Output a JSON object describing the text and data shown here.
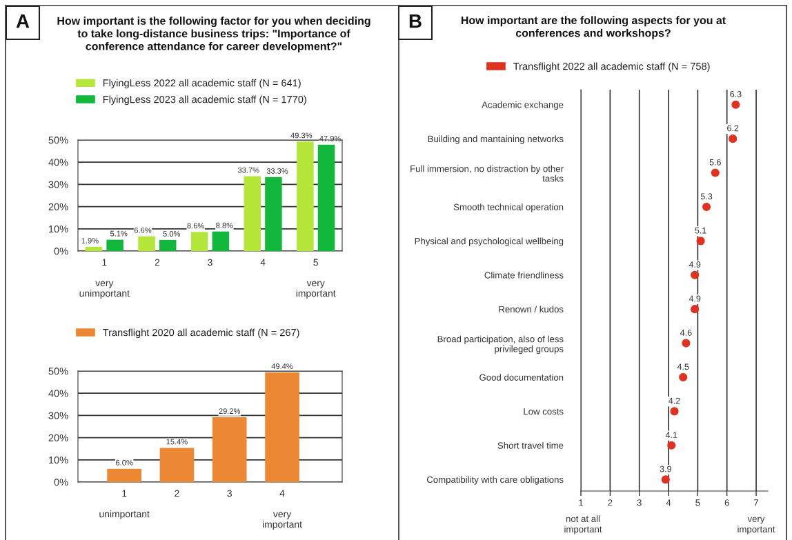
{
  "chart_data": [
    {
      "type": "bar",
      "title": "How important is the following factor for you when deciding\nto take long-distance business trips: \"Importance of\nconference attendance for career development?\"",
      "annotations": [
        "A"
      ],
      "categories": [
        "1\n\nvery\nunimportant",
        "2",
        "3",
        "4",
        "5\n\nvery\nimportant"
      ],
      "series": [
        {
          "name": "FlyingLess 2022 all academic staff (N = 641)",
          "color": "#b5e63a",
          "values": [
            1.9,
            6.6,
            8.6,
            33.7,
            49.3
          ],
          "value_labels": [
            "1.9%",
            "6.6%",
            "8.6%",
            "33.7%",
            "49.3%"
          ]
        },
        {
          "name": "FlyingLess 2023 all academic staff (N = 1770)",
          "color": "#12b83c",
          "values": [
            5.1,
            5.0,
            8.8,
            33.3,
            47.9
          ],
          "value_labels": [
            "5.1%",
            "5.0%",
            "8.8%",
            "33.3%",
            "47.9%"
          ]
        }
      ],
      "ylim": [
        0,
        50
      ],
      "yticks": [
        {
          "value": 0,
          "label": "0%"
        },
        {
          "value": 10,
          "label": "10%"
        },
        {
          "value": 20,
          "label": "20%"
        },
        {
          "value": 30,
          "label": "30%"
        },
        {
          "value": 40,
          "label": "40%"
        },
        {
          "value": 50,
          "label": "50%"
        }
      ],
      "grid": "y",
      "legend": "top"
    },
    {
      "type": "bar",
      "categories": [
        "1\n\nunimportant",
        "2",
        "3",
        "4\n\nvery\nimportant"
      ],
      "series": [
        {
          "name": "Transflight 2020 all academic staff (N = 267)",
          "color": "#ec8833",
          "values": [
            6.0,
            15.4,
            29.2,
            49.4
          ],
          "value_labels": [
            "6.0%",
            "15.4%",
            "29.2%",
            "49.4%"
          ]
        }
      ],
      "ylim": [
        0,
        50
      ],
      "yticks": [
        {
          "value": 0,
          "label": "0%"
        },
        {
          "value": 10,
          "label": "10%"
        },
        {
          "value": 20,
          "label": "20%"
        },
        {
          "value": 30,
          "label": "30%"
        },
        {
          "value": 40,
          "label": "40%"
        },
        {
          "value": 50,
          "label": "50%"
        }
      ],
      "grid": "y",
      "legend": "top"
    },
    {
      "type": "scatter",
      "orientation": "horizontal",
      "title": "How important are the following aspects for you at\nconferences and workshops?",
      "annotations": [
        "B",
        "not at all\nimportant",
        "very\nimportant"
      ],
      "categories": [
        "Academic exchange",
        "Building and mantaining networks",
        "Full immersion, no distraction by other\ntasks",
        "Smooth technical operation",
        "Physical and psychological wellbeing",
        "Climate friendliness",
        "Renown / kudos",
        "Broad participation, also of less\nprivileged groups",
        "Good documentation",
        "Low costs",
        "Short travel time",
        "Compatibility with care obligations"
      ],
      "series": [
        {
          "name": "Transflight 2022 all academic staff (N = 758)",
          "color": "#e0321f",
          "values": [
            6.3,
            6.2,
            5.6,
            5.3,
            5.1,
            4.9,
            4.9,
            4.6,
            4.5,
            4.2,
            4.1,
            3.9
          ]
        }
      ],
      "xlim": [
        1,
        7.4
      ],
      "xticks": [
        1,
        2,
        3,
        4,
        5,
        6,
        7
      ],
      "grid": "x",
      "legend": "top",
      "data_labels": true,
      "marker": "circle"
    }
  ]
}
